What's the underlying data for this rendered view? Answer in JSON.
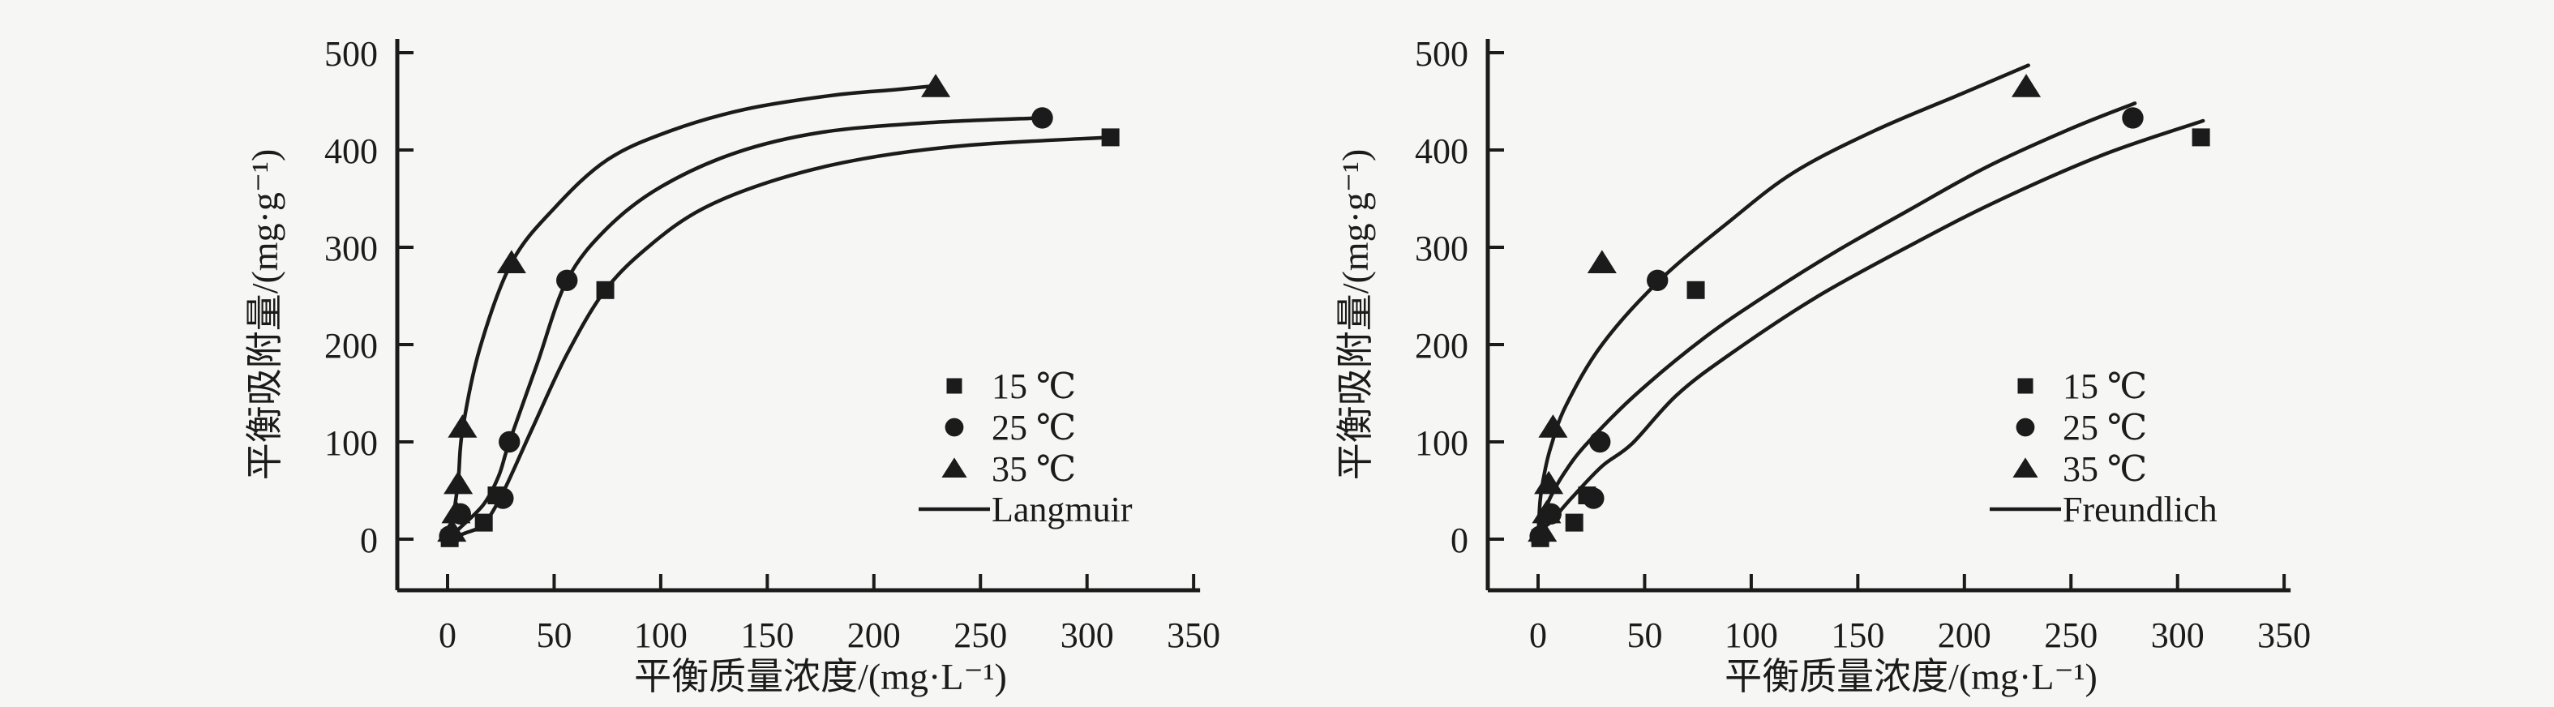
{
  "figure": {
    "background": "#f6f6f4",
    "ink": "#1b1b1b"
  },
  "chart_data": [
    {
      "type": "scatter",
      "fit_model": "Langmuir",
      "xlabel": "平衡质量浓度/(mg·L⁻¹)",
      "ylabel": "平衡吸附量/(mg·g⁻¹)",
      "xlim": [
        0,
        350
      ],
      "ylim": [
        0,
        500
      ],
      "xticks": [
        0,
        50,
        100,
        150,
        200,
        250,
        300,
        350
      ],
      "yticks": [
        0,
        100,
        200,
        300,
        400,
        500
      ],
      "grid": false,
      "legend_position": "inside-lower-right",
      "series": [
        {
          "name": "15 ℃",
          "marker": "square",
          "points": [
            [
              1,
              1
            ],
            [
              17,
              17
            ],
            [
              23,
              45
            ],
            [
              74,
              256
            ],
            [
              311,
              413
            ]
          ],
          "fit_curve": [
            [
              0,
              0
            ],
            [
              8,
              6
            ],
            [
              17,
              16
            ],
            [
              26,
              48
            ],
            [
              40,
              115
            ],
            [
              56,
              190
            ],
            [
              74,
              256
            ],
            [
              95,
              302
            ],
            [
              120,
              340
            ],
            [
              155,
              370
            ],
            [
              195,
              391
            ],
            [
              245,
              405
            ],
            [
              311,
              413
            ]
          ]
        },
        {
          "name": "25 ℃",
          "marker": "circle",
          "points": [
            [
              1,
              3
            ],
            [
              6,
              26
            ],
            [
              26,
              42
            ],
            [
              29,
              100
            ],
            [
              56,
              266
            ],
            [
              279,
              433
            ]
          ],
          "fit_curve": [
            [
              0,
              0
            ],
            [
              6,
              12
            ],
            [
              17,
              36
            ],
            [
              24,
              65
            ],
            [
              29,
              100
            ],
            [
              42,
              180
            ],
            [
              56,
              266
            ],
            [
              75,
              320
            ],
            [
              100,
              362
            ],
            [
              135,
              397
            ],
            [
              175,
              418
            ],
            [
              225,
              428
            ],
            [
              279,
              433
            ]
          ]
        },
        {
          "name": "35 ℃",
          "marker": "triangle",
          "points": [
            [
              2,
              8
            ],
            [
              4,
              27
            ],
            [
              5,
              57
            ],
            [
              7,
              115
            ],
            [
              30,
              284
            ],
            [
              229,
              465
            ]
          ],
          "fit_curve": [
            [
              0,
              0
            ],
            [
              2,
              15
            ],
            [
              5,
              60
            ],
            [
              7,
              112
            ],
            [
              15,
              195
            ],
            [
              30,
              284
            ],
            [
              50,
              340
            ],
            [
              75,
              390
            ],
            [
              105,
              420
            ],
            [
              140,
              442
            ],
            [
              180,
              456
            ],
            [
              210,
              462
            ],
            [
              229,
              466
            ]
          ]
        }
      ]
    },
    {
      "type": "scatter",
      "fit_model": "Freundlich",
      "xlabel": "平衡质量浓度/(mg·L⁻¹)",
      "ylabel": "平衡吸附量/(mg·g⁻¹)",
      "xlim": [
        0,
        350
      ],
      "ylim": [
        0,
        500
      ],
      "xticks": [
        0,
        50,
        100,
        150,
        200,
        250,
        300,
        350
      ],
      "yticks": [
        0,
        100,
        200,
        300,
        400,
        500
      ],
      "grid": false,
      "legend_position": "inside-lower-right",
      "series": [
        {
          "name": "15 ℃",
          "marker": "square",
          "points": [
            [
              1,
              1
            ],
            [
              17,
              17
            ],
            [
              23,
              45
            ],
            [
              74,
              256
            ],
            [
              311,
              413
            ]
          ],
          "fit_curve": [
            [
              0,
              0
            ],
            [
              1,
              7
            ],
            [
              3,
              13
            ],
            [
              6,
              18
            ],
            [
              16,
              43
            ],
            [
              30,
              75
            ],
            [
              44,
              98
            ],
            [
              65,
              148
            ],
            [
              90,
              190
            ],
            [
              130,
              248
            ],
            [
              173,
              300
            ],
            [
              215,
              347
            ],
            [
              265,
              395
            ],
            [
              312,
              430
            ]
          ]
        },
        {
          "name": "25 ℃",
          "marker": "circle",
          "points": [
            [
              1,
              3
            ],
            [
              6,
              26
            ],
            [
              26,
              42
            ],
            [
              29,
              100
            ],
            [
              56,
              266
            ],
            [
              279,
              433
            ]
          ],
          "fit_curve": [
            [
              0,
              0
            ],
            [
              1,
              14
            ],
            [
              3,
              28
            ],
            [
              6,
              44
            ],
            [
              12,
              67
            ],
            [
              22,
              96
            ],
            [
              45,
              147
            ],
            [
              78,
              207
            ],
            [
              110,
              255
            ],
            [
              140,
              296
            ],
            [
              173,
              337
            ],
            [
              210,
              382
            ],
            [
              250,
              422
            ],
            [
              280,
              448
            ]
          ]
        },
        {
          "name": "35 ℃",
          "marker": "triangle",
          "points": [
            [
              2,
              8
            ],
            [
              4,
              27
            ],
            [
              5,
              57
            ],
            [
              7,
              115
            ],
            [
              30,
              284
            ],
            [
              229,
              465
            ]
          ],
          "fit_curve": [
            [
              0,
              0
            ],
            [
              1,
              40
            ],
            [
              3,
              68
            ],
            [
              6,
              95
            ],
            [
              13,
              137
            ],
            [
              30,
              200
            ],
            [
              57,
              266
            ],
            [
              90,
              327
            ],
            [
              120,
              377
            ],
            [
              158,
              420
            ],
            [
              200,
              459
            ],
            [
              230,
              487
            ]
          ]
        }
      ]
    }
  ]
}
